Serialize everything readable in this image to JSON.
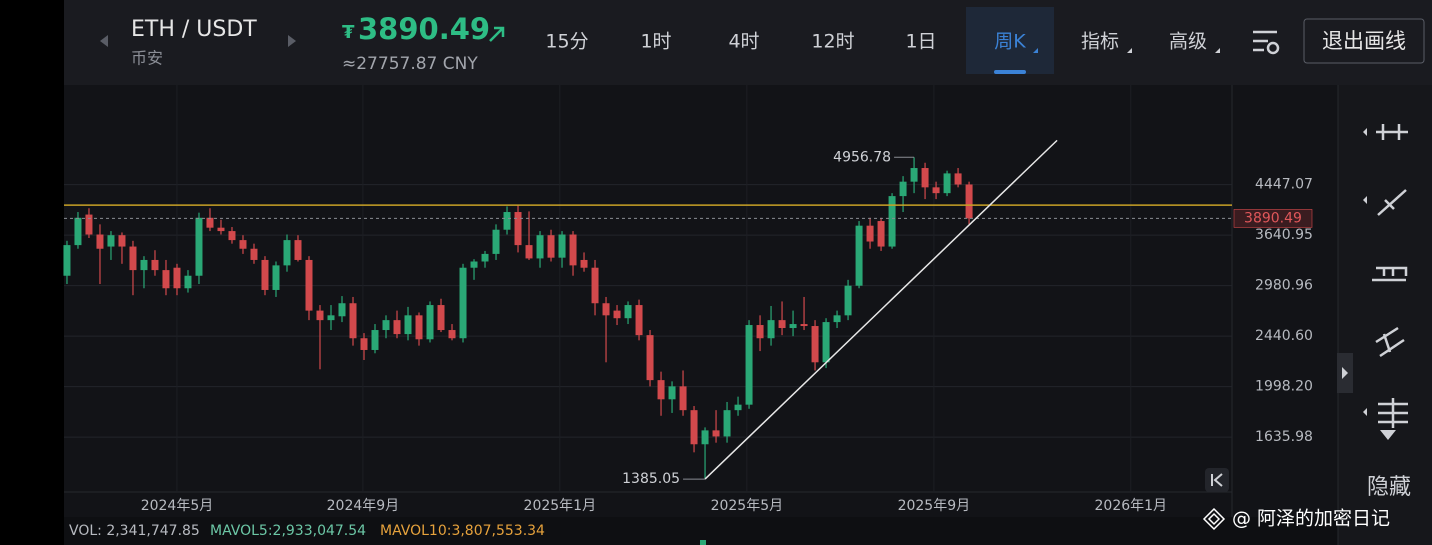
{
  "header": {
    "pair": "ETH / USDT",
    "exchange": "币安",
    "currency_icon": "₮",
    "price": 3890.49,
    "price_cny": "≈27757.87 CNY",
    "intervals": [
      "15分",
      "1时",
      "4时",
      "12时",
      "1日",
      "周K"
    ],
    "active_interval": 5,
    "menus": [
      "指标",
      "高级"
    ],
    "exit_button": "退出画线"
  },
  "side_toolbar": {
    "hide_label": "隐藏"
  },
  "chart_data": {
    "type": "candlestick",
    "log_scale": true,
    "grid": true,
    "up_color": "#2aa876",
    "down_color": "#d2494c",
    "open": [
      3100,
      3500,
      3950,
      3650,
      3480,
      3640,
      3480,
      3170,
      3300,
      3170,
      3200,
      2950,
      3100,
      3900,
      3750,
      3700,
      3570,
      3450,
      3300,
      2930,
      3230,
      3570,
      3300,
      2700,
      2600,
      2640,
      2780,
      2420,
      2310,
      2500,
      2600,
      2460,
      2650,
      2410,
      2760,
      2500,
      2420,
      3200,
      3280,
      3380,
      3720,
      3990,
      3500,
      3320,
      3640,
      3330,
      3650,
      3300,
      3200,
      2780,
      2700,
      2620,
      2760,
      2450,
      2050,
      1900,
      2000,
      1820,
      1590,
      1680,
      1640,
      1820,
      1860,
      2550,
      2420,
      2600,
      2520,
      2560,
      2540,
      2200,
      2580,
      2650,
      2980,
      3780,
      3850,
      3480,
      4250,
      4500,
      4750,
      4400,
      4300,
      4650,
      4450
    ],
    "high": [
      3560,
      3990,
      4050,
      3800,
      3700,
      3680,
      3560,
      3350,
      3430,
      3300,
      3250,
      3170,
      3980,
      4050,
      3870,
      3760,
      3640,
      3520,
      3350,
      3280,
      3650,
      3640,
      3350,
      2760,
      2760,
      2860,
      2850,
      2470,
      2560,
      2650,
      2700,
      2740,
      2680,
      2800,
      2830,
      2560,
      3250,
      3310,
      3420,
      3800,
      4080,
      4100,
      4000,
      3700,
      3720,
      3700,
      3700,
      3400,
      3300,
      2850,
      2760,
      2800,
      2820,
      2500,
      2120,
      2040,
      2130,
      1850,
      1700,
      1820,
      1880,
      1920,
      2600,
      2650,
      2750,
      2800,
      2700,
      2850,
      2600,
      2620,
      2700,
      3050,
      3850,
      3900,
      3900,
      4300,
      4600,
      4956.78,
      4850,
      4500,
      4700,
      4750,
      4500
    ],
    "low": [
      3000,
      3450,
      3600,
      3000,
      3300,
      3250,
      2870,
      2950,
      3100,
      2870,
      2870,
      2900,
      3000,
      3700,
      3650,
      3520,
      3380,
      3250,
      2870,
      2850,
      3150,
      3280,
      2600,
      2140,
      2500,
      2580,
      2350,
      2220,
      2280,
      2420,
      2420,
      2400,
      2350,
      2380,
      2480,
      2400,
      2380,
      3050,
      3200,
      3300,
      3650,
      3400,
      3300,
      3200,
      3280,
      3200,
      3100,
      3150,
      2650,
      2200,
      2550,
      2560,
      2400,
      2000,
      1780,
      1800,
      1780,
      1540,
      1385.05,
      1600,
      1600,
      1780,
      1830,
      2300,
      2350,
      2450,
      2440,
      2500,
      2130,
      2150,
      2520,
      2600,
      2950,
      3450,
      3420,
      3450,
      3990,
      4300,
      4200,
      4200,
      4250,
      4400,
      3800
    ],
    "close": [
      3500,
      3900,
      3650,
      3450,
      3640,
      3480,
      3170,
      3300,
      3170,
      2950,
      2950,
      3100,
      3900,
      3750,
      3700,
      3570,
      3450,
      3300,
      2930,
      3230,
      3570,
      3300,
      2700,
      2600,
      2650,
      2780,
      2420,
      2310,
      2500,
      2600,
      2460,
      2650,
      2410,
      2760,
      2500,
      2420,
      3200,
      3280,
      3380,
      3720,
      3990,
      3500,
      3320,
      3640,
      3330,
      3650,
      3230,
      3200,
      2780,
      2650,
      2620,
      2760,
      2450,
      2050,
      1900,
      2000,
      1820,
      1590,
      1680,
      1640,
      1820,
      1860,
      2550,
      2420,
      2600,
      2520,
      2560,
      2540,
      2200,
      2580,
      2650,
      2980,
      3780,
      3550,
      3480,
      4250,
      4500,
      4750,
      4400,
      4300,
      4650,
      4450,
      3890.49
    ],
    "xlim": [
      -0.27,
      105.9
    ],
    "ylim": [
      1316,
      6600
    ],
    "xticks": [
      {
        "value": 10,
        "label": "2024年5月"
      },
      {
        "value": 26.9,
        "label": "2024年9月"
      },
      {
        "value": 44.8,
        "label": "2025年1月"
      },
      {
        "value": 61.8,
        "label": "2025年5月"
      },
      {
        "value": 78.8,
        "label": "2025年9月"
      },
      {
        "value": 96.7,
        "label": "2026年1月"
      }
    ],
    "yticks": [
      4447.07,
      3640.95,
      2980.96,
      {
        "value": 2440.6,
        "label": "2440.60"
      },
      {
        "value": 1998.2,
        "label": "1998.20"
      },
      1635.98
    ],
    "last_price": 3890.49,
    "horizontal_line": {
      "value": 4100,
      "color": "#c9a227"
    },
    "trendline": {
      "x": [
        58,
        90
      ],
      "y": [
        1385.05,
        5300
      ],
      "color": "#e8e8e8"
    }
  },
  "volume": {
    "vol": "VOL: 2,341,747.85",
    "mavol5": "MAVOL5:2,933,047.54",
    "mavol10": "MAVOL10:3,807,553.34"
  },
  "watermark": "@ 阿泽的加密日记"
}
